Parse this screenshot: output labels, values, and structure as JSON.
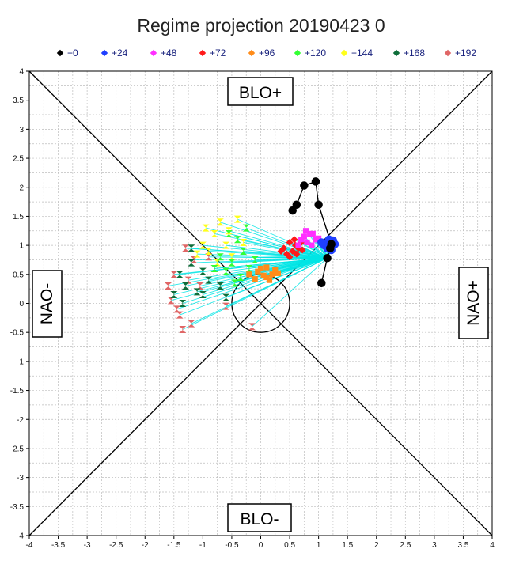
{
  "chart_data": {
    "type": "scatter",
    "title": "Regime projection  20190423 0",
    "xlim": [
      -4,
      4
    ],
    "ylim": [
      -4,
      4
    ],
    "xticks": [
      "-4",
      "-3.5",
      "-3",
      "-2.5",
      "-2",
      "-1.5",
      "-1",
      "-0.5",
      "0",
      "0.5",
      "1",
      "1.5",
      "2",
      "2.5",
      "3",
      "3.5",
      "4"
    ],
    "yticks": [
      "4",
      "3.5",
      "3",
      "2.5",
      "2",
      "1.5",
      "1",
      "0.5",
      "0",
      "-0.5",
      "-1",
      "-1.5",
      "-2",
      "-2.5",
      "-3",
      "-3.5",
      "-4"
    ],
    "grid": true,
    "legend_position": "top",
    "regions": {
      "top": "BLO+",
      "bottom": "BLO-",
      "left": "NAO-",
      "right": "NAO+"
    },
    "center_circle_radius": 0.5,
    "trajectory_color": "#00e5e5",
    "series": [
      {
        "name": "+0",
        "color": "#000000",
        "marker": "circle",
        "points": [
          [
            1.05,
            0.35
          ],
          [
            1.15,
            0.78
          ],
          [
            1.2,
            0.95
          ],
          [
            1.22,
            1.02
          ],
          [
            1.0,
            1.7
          ],
          [
            0.95,
            2.1
          ],
          [
            0.75,
            2.03
          ],
          [
            0.62,
            1.7
          ],
          [
            0.55,
            1.6
          ]
        ]
      },
      {
        "name": "+24",
        "color": "#1f3fff",
        "marker": "circle",
        "points": [
          [
            1.2,
            1.05
          ],
          [
            1.25,
            1.08
          ],
          [
            1.1,
            1.0
          ],
          [
            1.15,
            0.95
          ],
          [
            1.28,
            1.02
          ],
          [
            1.18,
            1.1
          ],
          [
            1.22,
            0.92
          ],
          [
            1.05,
            1.05
          ]
        ]
      },
      {
        "name": "+48",
        "color": "#ff30ff",
        "marker": "square",
        "points": [
          [
            0.85,
            1.2
          ],
          [
            0.75,
            1.15
          ],
          [
            0.95,
            1.1
          ],
          [
            0.8,
            1.05
          ],
          [
            0.7,
            1.1
          ],
          [
            0.9,
            1.2
          ],
          [
            1.0,
            1.12
          ],
          [
            0.65,
            1.0
          ],
          [
            0.78,
            1.25
          ],
          [
            0.88,
            1.0
          ]
        ]
      },
      {
        "name": "+72",
        "color": "#ff1a1a",
        "marker": "diamond",
        "points": [
          [
            0.5,
            1.05
          ],
          [
            0.6,
            1.0
          ],
          [
            0.55,
            0.9
          ],
          [
            0.65,
            0.95
          ],
          [
            0.45,
            0.85
          ],
          [
            0.7,
            1.05
          ],
          [
            0.58,
            1.1
          ],
          [
            0.4,
            0.95
          ],
          [
            0.62,
            0.85
          ],
          [
            0.5,
            0.8
          ],
          [
            0.72,
            0.92
          ],
          [
            0.35,
            0.9
          ]
        ]
      },
      {
        "name": "+96",
        "color": "#ff8c1a",
        "marker": "square",
        "points": [
          [
            0.2,
            0.5
          ],
          [
            0.1,
            0.45
          ],
          [
            -0.05,
            0.55
          ],
          [
            0.0,
            0.6
          ],
          [
            0.3,
            0.52
          ],
          [
            -0.2,
            0.5
          ],
          [
            0.1,
            0.62
          ],
          [
            0.25,
            0.58
          ],
          [
            -0.1,
            0.42
          ],
          [
            0.05,
            0.48
          ],
          [
            0.15,
            0.4
          ]
        ]
      },
      {
        "name": "+120",
        "color": "#33ff33",
        "marker": "hourglass",
        "points": [
          [
            -0.3,
            0.9
          ],
          [
            -0.5,
            0.7
          ],
          [
            -0.2,
            0.6
          ],
          [
            -0.4,
            1.1
          ],
          [
            -0.6,
            0.55
          ],
          [
            -0.1,
            0.75
          ],
          [
            -0.7,
            0.8
          ],
          [
            -0.35,
            0.45
          ],
          [
            -0.55,
            1.2
          ],
          [
            -0.25,
            1.3
          ],
          [
            -0.8,
            0.6
          ],
          [
            -0.45,
            0.35
          ]
        ]
      },
      {
        "name": "+144",
        "color": "#ffff1a",
        "marker": "hourglass",
        "points": [
          [
            -0.8,
            1.2
          ],
          [
            -0.6,
            1.0
          ],
          [
            -0.9,
            0.9
          ],
          [
            -0.5,
            0.8
          ],
          [
            -0.7,
            1.4
          ],
          [
            -1.0,
            1.0
          ],
          [
            -0.4,
            1.45
          ],
          [
            -0.75,
            0.7
          ],
          [
            -1.1,
            0.85
          ],
          [
            -0.3,
            1.05
          ],
          [
            -0.95,
            1.3
          ],
          [
            -0.55,
            1.25
          ]
        ]
      },
      {
        "name": "+168",
        "color": "#0f6e3a",
        "marker": "hourglass",
        "points": [
          [
            -1.0,
            0.55
          ],
          [
            -1.2,
            0.7
          ],
          [
            -0.9,
            0.4
          ],
          [
            -1.3,
            0.3
          ],
          [
            -1.1,
            0.2
          ],
          [
            -1.5,
            0.15
          ],
          [
            -0.8,
            0.6
          ],
          [
            -1.4,
            0.5
          ],
          [
            -1.0,
            0.15
          ],
          [
            -1.2,
            0.95
          ],
          [
            -0.7,
            0.3
          ],
          [
            -1.35,
            0.0
          ],
          [
            -0.6,
            0.1
          ]
        ]
      },
      {
        "name": "+192",
        "color": "#e06666",
        "marker": "hourglass",
        "points": [
          [
            -1.3,
            0.95
          ],
          [
            -1.5,
            0.5
          ],
          [
            -1.4,
            -0.2
          ],
          [
            -1.6,
            0.3
          ],
          [
            -1.2,
            -0.35
          ],
          [
            -1.35,
            -0.45
          ],
          [
            -1.15,
            0.75
          ],
          [
            -1.55,
            0.05
          ],
          [
            -1.25,
            0.4
          ],
          [
            -0.9,
            0.8
          ],
          [
            -1.45,
            -0.1
          ],
          [
            -0.15,
            -0.4
          ],
          [
            -0.6,
            -0.05
          ],
          [
            -1.05,
            0.3
          ]
        ]
      }
    ]
  }
}
